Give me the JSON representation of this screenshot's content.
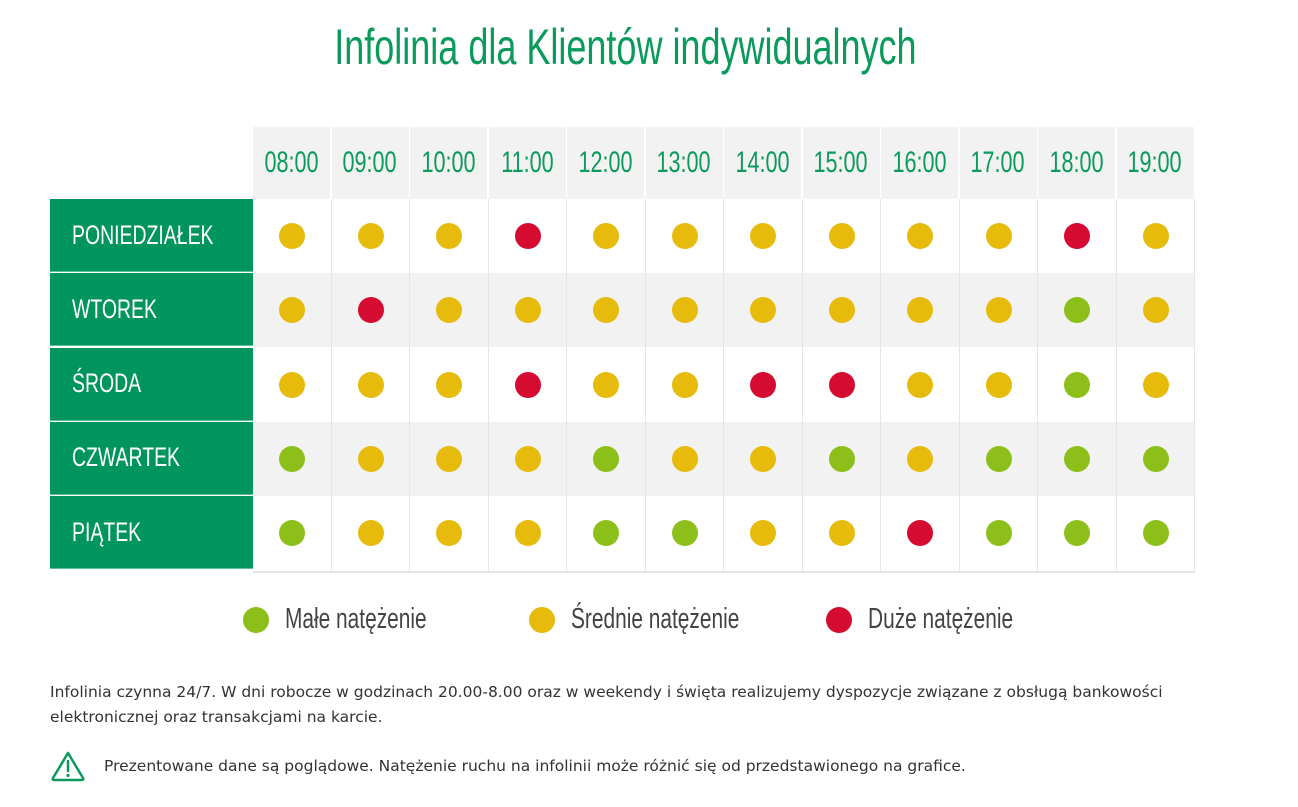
{
  "title": "Infolinia dla Klientów indywidualnych",
  "colors": {
    "brand": "#00955f",
    "title": "#0a9a5c",
    "low": "#8dbf1a",
    "medium": "#e6bb0c",
    "high": "#d50b32",
    "header_bg": "#f2f2f2",
    "alt_row": "#f2f2f2"
  },
  "chart_data": {
    "type": "heatmap",
    "title": "Infolinia dla Klientów indywidualnych",
    "x": [
      "08:00",
      "09:00",
      "10:00",
      "11:00",
      "12:00",
      "13:00",
      "14:00",
      "15:00",
      "16:00",
      "17:00",
      "18:00",
      "19:00"
    ],
    "y": [
      "PONIEDZIAŁEK",
      "WTOREK",
      "ŚRODA",
      "CZWARTEK",
      "PIĄTEK"
    ],
    "levels": {
      "low": "Małe natężenie",
      "medium": "Średnie natężenie",
      "high": "Duże natężenie"
    },
    "values": [
      [
        "medium",
        "medium",
        "medium",
        "high",
        "medium",
        "medium",
        "medium",
        "medium",
        "medium",
        "medium",
        "high",
        "medium"
      ],
      [
        "medium",
        "high",
        "medium",
        "medium",
        "medium",
        "medium",
        "medium",
        "medium",
        "medium",
        "medium",
        "low",
        "medium"
      ],
      [
        "medium",
        "medium",
        "medium",
        "high",
        "medium",
        "medium",
        "high",
        "high",
        "medium",
        "medium",
        "low",
        "medium"
      ],
      [
        "low",
        "medium",
        "medium",
        "medium",
        "low",
        "medium",
        "medium",
        "low",
        "medium",
        "low",
        "low",
        "low"
      ],
      [
        "low",
        "medium",
        "medium",
        "medium",
        "low",
        "low",
        "medium",
        "medium",
        "high",
        "low",
        "low",
        "low"
      ]
    ],
    "legend_position": "bottom"
  },
  "legend": [
    {
      "key": "low",
      "label": "Małe natężenie"
    },
    {
      "key": "medium",
      "label": "Średnie natężenie"
    },
    {
      "key": "high",
      "label": "Duże natężenie"
    }
  ],
  "note": "Infolinia czynna 24/7. W dni robocze w godzinach 20.00-8.00 oraz w weekendy i święta realizujemy dyspozycje związane z obsługą bankowości elektronicznej oraz transakcjami na karcie.",
  "warning": {
    "icon": "warning-triangle-icon",
    "text": "Prezentowane dane są poglądowe. Natężenie ruchu na infolinii może różnić się od przedstawionego na grafice."
  }
}
